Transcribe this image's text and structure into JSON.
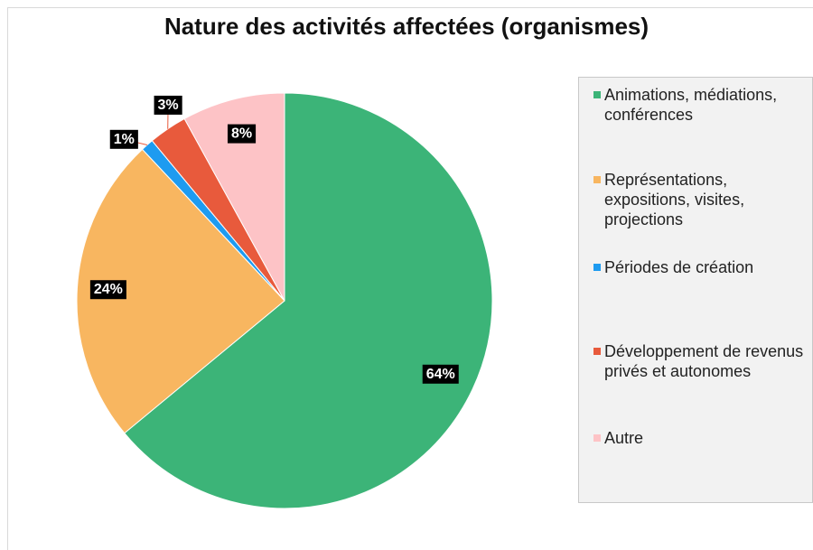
{
  "chart_data": {
    "type": "pie",
    "title": "Nature des activités affectées (organismes)",
    "categories": [
      "Animations, médiations, conférences",
      "Représentations, expositions, visites, projections",
      "Périodes de création",
      "Développement de revenus privés et autonomes",
      "Autre"
    ],
    "values": [
      64,
      24,
      1,
      3,
      8
    ],
    "value_labels": [
      "64%",
      "24%",
      "1%",
      "3%",
      "8%"
    ],
    "colors": [
      "#3cb478",
      "#f8b660",
      "#1e9bf0",
      "#e85a3c",
      "#fdc3c6"
    ],
    "legend": "right"
  }
}
